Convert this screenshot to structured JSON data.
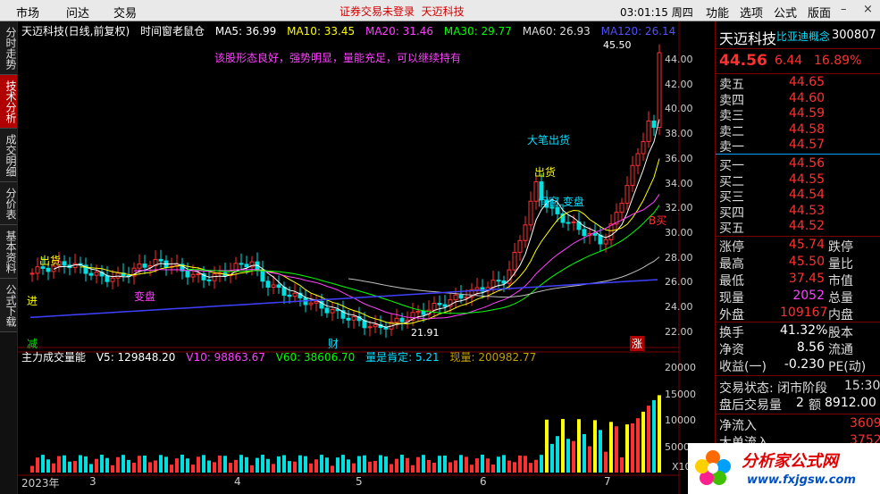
{
  "menu": {
    "market": "市场",
    "inquiry": "问达",
    "trade": "交易",
    "notice": "证券交易未登录",
    "notice_stock": "天迈科技",
    "clock": "03:01:15 周四",
    "right_menus": [
      "功能",
      "选项",
      "公式",
      "版面"
    ]
  },
  "left_tabs": [
    {
      "label": "分时走势",
      "active": false
    },
    {
      "label": "技术分析",
      "active": true
    },
    {
      "label": "成交明细",
      "active": false
    },
    {
      "label": "分价表",
      "active": false
    },
    {
      "label": "基本资料",
      "active": false
    },
    {
      "label": "公式下载",
      "active": false
    }
  ],
  "header": {
    "stock": "天迈科技(日线,前复权)",
    "indicator": "时间窗老鼠仓",
    "ma5": "MA5: 36.99",
    "ma10": "MA10: 33.45",
    "ma20": "MA20: 31.46",
    "ma30": "MA30: 29.77",
    "ma60": "MA60: 26.93",
    "ma120": "MA120: 26.14"
  },
  "annotations": {
    "comment": "该股形态良好，强势明显，量能充足，可以继续持有",
    "big_sell": "大笔出货",
    "sell": "出货",
    "timewindow": "间窗,变盘",
    "buy": "B买",
    "sell2": "出货",
    "reduce": "减",
    "finance": "财",
    "up": "涨",
    "high_label": "45.50",
    "low_label": "21.91",
    "change_left": "变盘",
    "buy_small": "进"
  },
  "y_ticks": [
    "44.00",
    "42.00",
    "40.00",
    "38.00",
    "36.00",
    "34.00",
    "32.00",
    "30.00",
    "28.00",
    "26.00",
    "24.00",
    "22.00"
  ],
  "volume": {
    "legend_name": "主力成交量能",
    "v5": "V5: 129848.20",
    "v10": "V10: 98863.67",
    "v60": "V60: 38606.70",
    "quality": "量是肯定: 5.21",
    "current": "现量: 200982.77",
    "y_ticks": [
      "20000",
      "15000",
      "10000",
      "5000"
    ],
    "unit": "X10"
  },
  "x_ticks": [
    "2023年",
    "3",
    "4",
    "5",
    "6",
    "7"
  ],
  "quote": {
    "name": "天迈科技",
    "concept": "比亚迪概念",
    "code": "300807",
    "price": "44.56",
    "change": "6.44",
    "pct": "16.89%",
    "sells": [
      {
        "label": "卖五",
        "price": "44.65"
      },
      {
        "label": "卖四",
        "price": "44.60"
      },
      {
        "label": "卖三",
        "price": "44.59"
      },
      {
        "label": "卖二",
        "price": "44.58"
      },
      {
        "label": "卖一",
        "price": "44.57"
      }
    ],
    "buys": [
      {
        "label": "买一",
        "price": "44.56"
      },
      {
        "label": "买二",
        "price": "44.55"
      },
      {
        "label": "买三",
        "price": "44.54"
      },
      {
        "label": "买四",
        "price": "44.53"
      },
      {
        "label": "买五",
        "price": "44.52"
      }
    ],
    "stats": [
      {
        "k": "涨停",
        "v": "45.74",
        "k2": "跌停"
      },
      {
        "k": "最高",
        "v": "45.50",
        "k2": "量比"
      },
      {
        "k": "最低",
        "v": "37.45",
        "k2": "市值"
      },
      {
        "k": "现量",
        "v": "2052",
        "k2": "总量"
      },
      {
        "k": "外盘",
        "v": "109167",
        "k2": "内盘"
      }
    ],
    "stats2": [
      {
        "k": "换手",
        "v": "41.32%",
        "k2": "股本"
      },
      {
        "k": "净资",
        "v": "8.56",
        "k2": "流通"
      },
      {
        "k": "收益(一)",
        "v": "-0.230",
        "k2": "PE(动)"
      }
    ],
    "status_label": "交易状态: 闭市阶段",
    "status_time": "15:30",
    "after_label": "盘后交易量",
    "after_count": "2",
    "after_amount_label": "额",
    "after_amount": "8912.00",
    "netin_label": "净流入",
    "netin_value": "3609",
    "bigin_label": "大单流入",
    "bigin_value": "3752"
  },
  "watermark": {
    "text": "分析家公式网",
    "url": "www.fxjgsw.com"
  },
  "colors": {
    "up": "#ff3030",
    "down": "#00e0e0",
    "ma5": "#ffffff",
    "ma10": "#ffff00",
    "ma20": "#ff40ff",
    "ma30": "#00ff00",
    "ma60": "#c0c0c0",
    "ma120": "#4040ff"
  }
}
